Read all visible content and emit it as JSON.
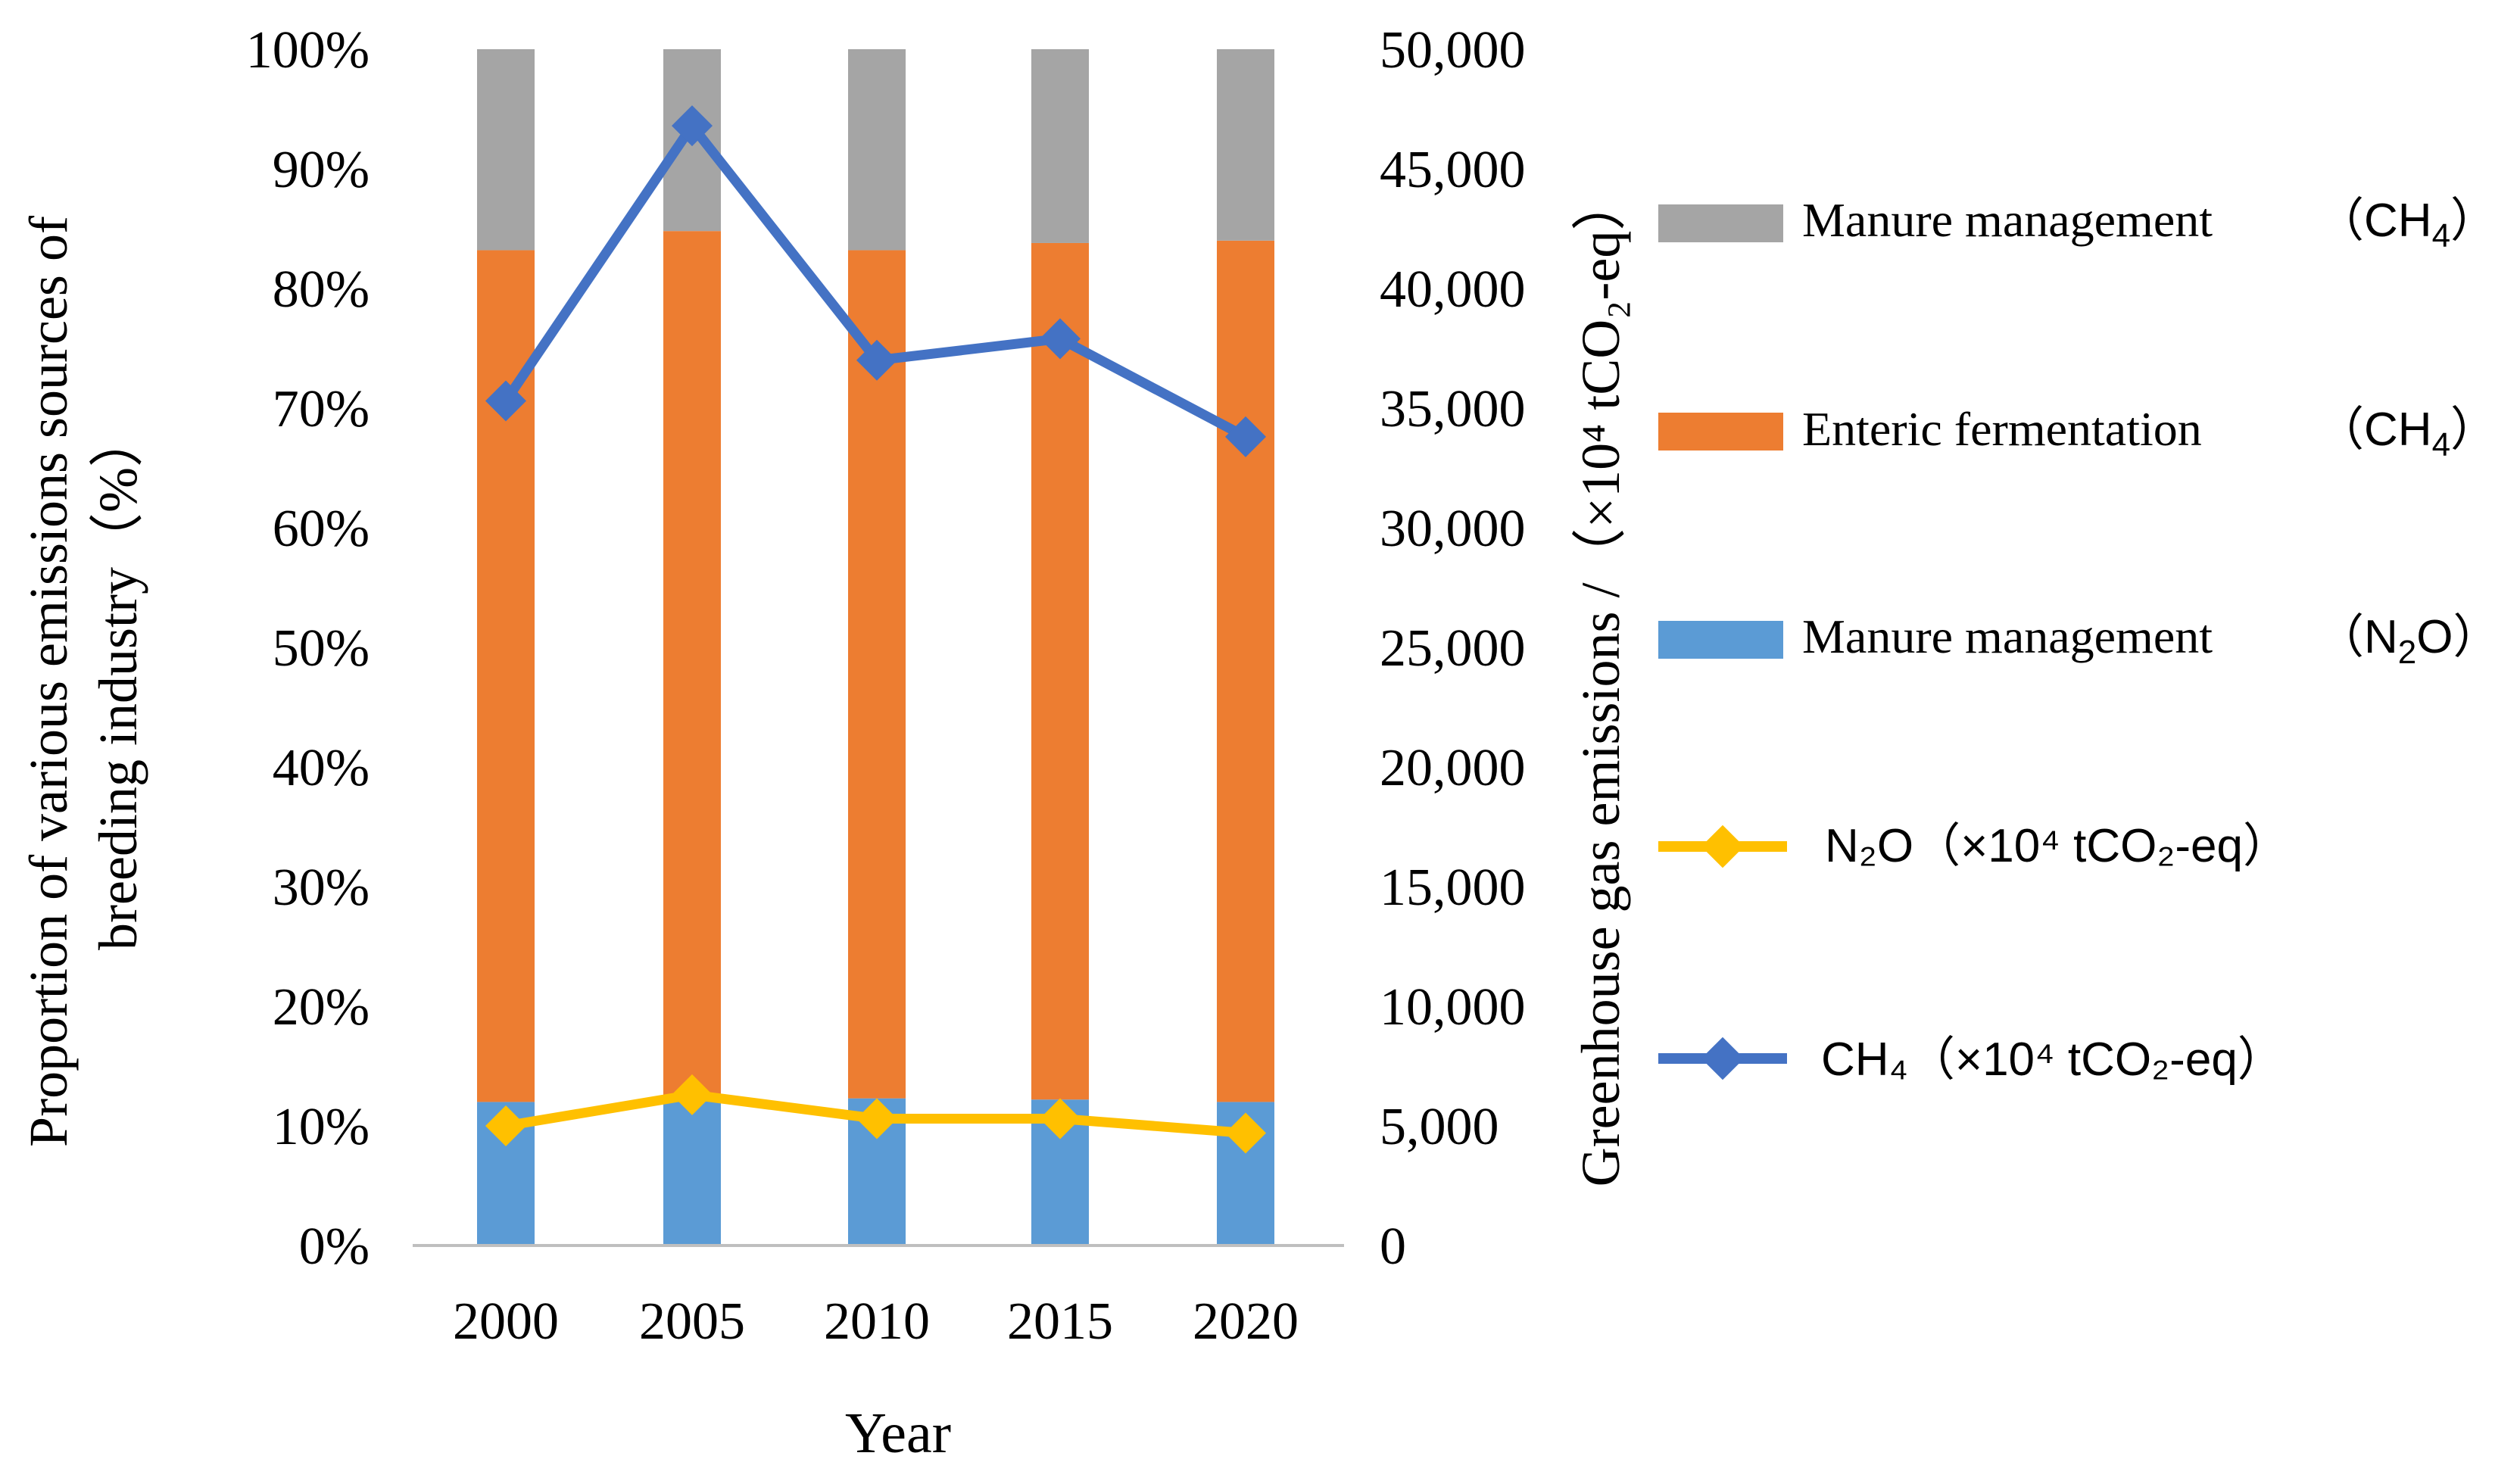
{
  "chart_data": {
    "type": "bar",
    "stacked": true,
    "categories": [
      "2000",
      "2005",
      "2010",
      "2015",
      "2020"
    ],
    "xlabel": "Year",
    "ylabel_left": [
      "Proportion of various emissions sources of",
      "breeding industry（%）"
    ],
    "ylabel_right": "Greenhouse gas emissions /（×10⁴ tCO₂-eq）",
    "ylim_left": [
      0,
      100
    ],
    "ylim_right": [
      0,
      50000
    ],
    "left_ticks": [
      "0%",
      "10%",
      "20%",
      "30%",
      "40%",
      "50%",
      "60%",
      "70%",
      "80%",
      "90%",
      "100%"
    ],
    "right_ticks": [
      "0",
      "5,000",
      "10,000",
      "15,000",
      "20,000",
      "25,000",
      "30,000",
      "35,000",
      "40,000",
      "45,000",
      "50,000"
    ],
    "bar_series": [
      {
        "name": "Manure management (N2O)",
        "color": "#5b9bd5",
        "values": [
          12,
          12.5,
          12.3,
          12.2,
          12
        ]
      },
      {
        "name": "Enteric fermentation (CH4)",
        "color": "#ed7d31",
        "values": [
          71.2,
          72.3,
          70.9,
          71.6,
          72
        ]
      },
      {
        "name": "Manure management (CH4)",
        "color": "#a5a5a5",
        "values": [
          16.8,
          15.2,
          16.8,
          16.2,
          16
        ]
      }
    ],
    "line_series": [
      {
        "name": "N2O (×10⁴ tCO₂-eq)",
        "color": "#ffc000",
        "marker": "diamond",
        "axis": "right",
        "values": [
          5000,
          6300,
          5300,
          5300,
          4700
        ]
      },
      {
        "name": "CH4 (×10⁴ tCO₂-eq)",
        "color": "#4472c4",
        "marker": "diamond",
        "axis": "right",
        "values": [
          35300,
          46800,
          37000,
          37900,
          33800
        ]
      }
    ]
  },
  "legend": {
    "items": [
      {
        "text": "Manure management",
        "suffix": "（CH",
        "sub": "4",
        "tail": "）",
        "swatch": "#a5a5a5",
        "kind": "box"
      },
      {
        "text": "Enteric fermentation",
        "suffix": "（CH",
        "sub": "4",
        "tail": "）",
        "swatch": "#ed7d31",
        "kind": "box"
      },
      {
        "text": "Manure management",
        "suffix": "（N",
        "sub": "2",
        "tail": "O）",
        "swatch": "#5b9bd5",
        "kind": "box"
      },
      {
        "text": "N₂O（×10⁴ tCO₂-eq）",
        "swatch": "#ffc000",
        "kind": "line"
      },
      {
        "text": "CH₄（×10⁴ tCO₂-eq）",
        "swatch": "#4472c4",
        "kind": "line"
      }
    ]
  }
}
